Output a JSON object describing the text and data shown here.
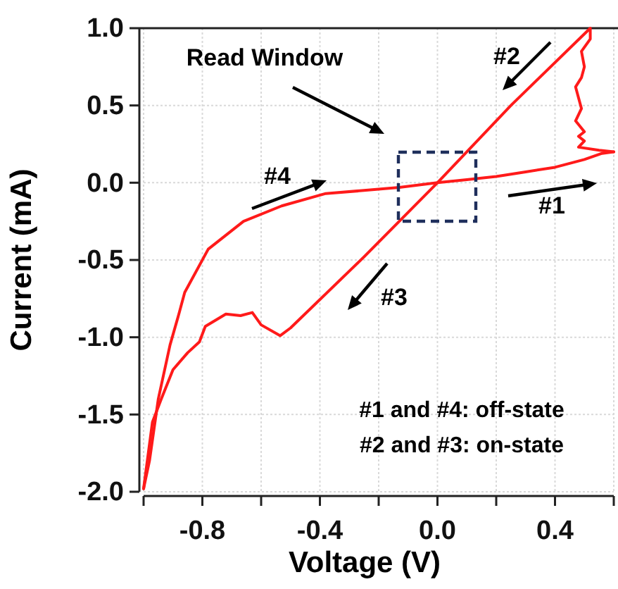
{
  "chart_data": {
    "type": "line",
    "xlabel": "Voltage (V)",
    "ylabel": "Current (mA)",
    "xlim": [
      -1.0,
      0.6
    ],
    "ylim": [
      -2.0,
      1.0
    ],
    "xticks": [
      {
        "value": -1.0,
        "label": null
      },
      {
        "value": -0.8,
        "label": "-0.8"
      },
      {
        "value": -0.6,
        "label": null
      },
      {
        "value": -0.4,
        "label": "-0.4"
      },
      {
        "value": -0.2,
        "label": null
      },
      {
        "value": 0.0,
        "label": "0.0"
      },
      {
        "value": 0.2,
        "label": null
      },
      {
        "value": 0.4,
        "label": "0.4"
      },
      {
        "value": 0.6,
        "label": null
      }
    ],
    "yticks": [
      {
        "value": -2.0,
        "label": "-2.0"
      },
      {
        "value": -1.5,
        "label": "-1.5"
      },
      {
        "value": -1.0,
        "label": "-1.0"
      },
      {
        "value": -0.5,
        "label": "-0.5"
      },
      {
        "value": 0.0,
        "label": "0.0"
      },
      {
        "value": 0.5,
        "label": "0.5"
      },
      {
        "value": 1.0,
        "label": "1.0"
      }
    ],
    "grid": true,
    "marker": "none",
    "line_style": "solid",
    "series": [
      {
        "color": "#ff1a1a",
        "x": [
          -1.0,
          -0.98,
          -0.95,
          -0.91,
          -0.88,
          -0.86,
          -0.78,
          -0.66,
          -0.53,
          -0.38,
          -0.25,
          -0.13,
          0.0,
          0.1,
          0.2,
          0.3,
          0.4,
          0.5,
          0.56,
          0.6
        ],
        "values": [
          -1.98,
          -1.8,
          -1.4,
          -1.05,
          -0.85,
          -0.71,
          -0.43,
          -0.25,
          -0.15,
          -0.07,
          -0.05,
          -0.03,
          0.0,
          0.02,
          0.04,
          0.07,
          0.1,
          0.15,
          0.19,
          0.2
        ]
      },
      {
        "color": "#ff1a1a",
        "x": [
          0.6,
          0.55,
          0.48,
          0.5,
          0.48,
          0.5,
          0.47,
          0.49,
          0.48,
          0.47,
          0.49,
          0.5,
          0.49,
          0.52,
          0.52,
          0.25,
          0.0,
          -0.25,
          -0.5,
          -0.535,
          -0.6,
          -0.63,
          -0.67,
          -0.72,
          -0.79,
          -0.81,
          -0.85,
          -0.9,
          -0.94,
          -0.97,
          -1.0
        ],
        "values": [
          0.2,
          0.21,
          0.23,
          0.27,
          0.3,
          0.33,
          0.4,
          0.48,
          0.55,
          0.62,
          0.68,
          0.75,
          0.85,
          0.93,
          1.0,
          0.5,
          0.0,
          -0.48,
          -0.94,
          -0.99,
          -0.92,
          -0.84,
          -0.86,
          -0.85,
          -0.93,
          -1.03,
          -1.1,
          -1.21,
          -1.4,
          -1.55,
          -1.98
        ]
      }
    ],
    "annotations": [
      "Read Window",
      "#1",
      "#2",
      "#3",
      "#4",
      "#1 and #4: off-state",
      "#2 and #3: on-state"
    ]
  }
}
